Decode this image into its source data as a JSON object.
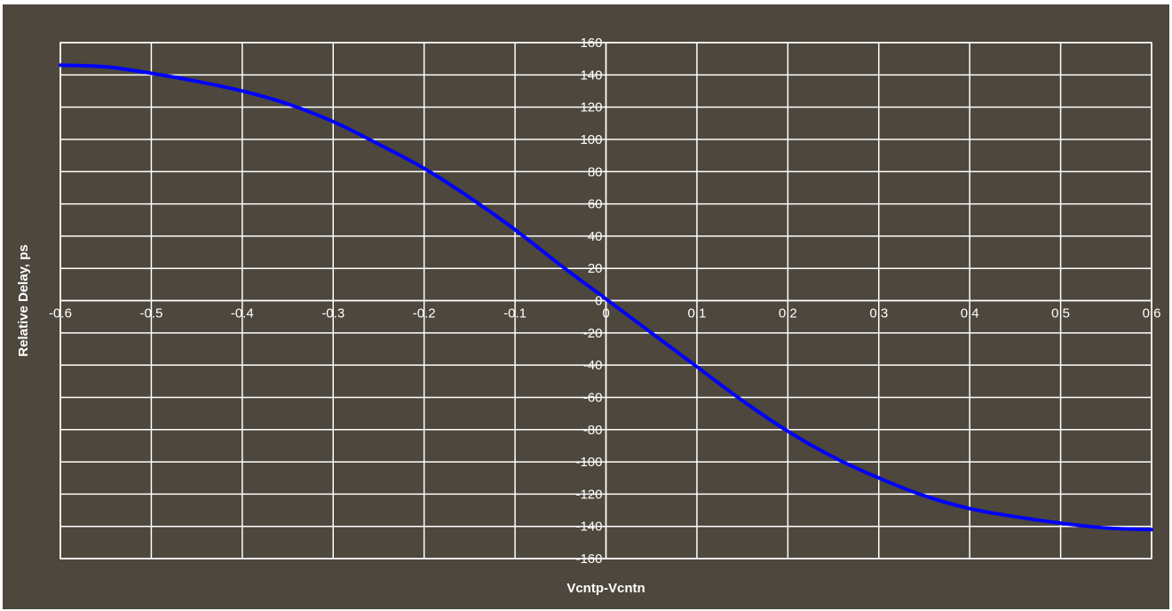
{
  "chart_data": {
    "type": "line",
    "title": "",
    "xlabel": "Vcntp-Vcntn",
    "ylabel": "Relative Delay, ps",
    "xlim": [
      -0.6,
      0.6
    ],
    "ylim": [
      -160,
      160
    ],
    "x_ticks": [
      "-0.6",
      "-0.5",
      "-0.4",
      "-0.3",
      "-0.2",
      "-0.1",
      "0",
      "0.1",
      "0.2",
      "0.3",
      "0.4",
      "0.5",
      "0.6"
    ],
    "y_ticks": [
      "160",
      "140",
      "120",
      "100",
      "80",
      "60",
      "40",
      "20",
      "0",
      "-20",
      "-40",
      "-60",
      "-80",
      "-100",
      "-120",
      "-140",
      "-160"
    ],
    "grid": true,
    "legend": "none",
    "series": [
      {
        "color": "#0000ff",
        "x": [
          -0.6,
          -0.55,
          -0.5,
          -0.45,
          -0.4,
          -0.35,
          -0.3,
          -0.25,
          -0.2,
          -0.15,
          -0.1,
          -0.05,
          0,
          0.05,
          0.1,
          0.15,
          0.2,
          0.25,
          0.3,
          0.35,
          0.4,
          0.45,
          0.5,
          0.55,
          0.6
        ],
        "y": [
          146,
          145,
          141,
          136,
          130,
          122,
          111,
          97,
          82,
          64,
          44,
          22,
          1,
          -20,
          -41,
          -62,
          -81,
          -97,
          -110,
          -121,
          -129,
          -134,
          -138,
          -141,
          -142
        ]
      }
    ],
    "colors": {
      "background": "#4d473d",
      "grid": "#ffffff",
      "text": "#ffffff",
      "line": "#0000ff"
    }
  }
}
